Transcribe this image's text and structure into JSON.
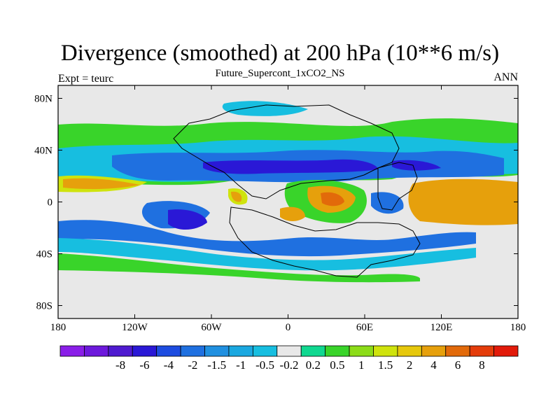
{
  "title": "Divergence (smoothed) at 200 hPa (10**6 m/s)",
  "subtitle": "Future_Supercont_1xCO2_NS",
  "left_label": "Expt = teurc",
  "right_label": "ANN",
  "chart_data": {
    "type": "heatmap",
    "projection": "cylindrical-equidistant",
    "xlim": [
      -180,
      180
    ],
    "ylim": [
      -90,
      90
    ],
    "x_ticks": [
      {
        "value": -180,
        "label": "180"
      },
      {
        "value": -120,
        "label": "120W"
      },
      {
        "value": -60,
        "label": "60W"
      },
      {
        "value": 0,
        "label": "0"
      },
      {
        "value": 60,
        "label": "60E"
      },
      {
        "value": 120,
        "label": "120E"
      },
      {
        "value": 180,
        "label": "180"
      }
    ],
    "y_ticks": [
      {
        "value": 80,
        "label": "80N"
      },
      {
        "value": 40,
        "label": "40N"
      },
      {
        "value": 0,
        "label": "0"
      },
      {
        "value": -40,
        "label": "40S"
      },
      {
        "value": -80,
        "label": "80S"
      }
    ],
    "colorbar": {
      "levels": [
        "-8",
        "-6",
        "-4",
        "-2",
        "-1.5",
        "-1",
        "-0.5",
        "-0.2",
        "0.2",
        "0.5",
        "1",
        "1.5",
        "2",
        "4",
        "6",
        "8"
      ],
      "colors": [
        "#8a1ee8",
        "#6d19dc",
        "#4f1ad0",
        "#2a18d6",
        "#1d4ce0",
        "#1f70e0",
        "#2090e0",
        "#1aa8e0",
        "#17bee0",
        "#e8e8e8",
        "#10d890",
        "#39d42a",
        "#8cdc18",
        "#cfe30d",
        "#e6c80c",
        "#e6a00c",
        "#e26a0a",
        "#e43c0a",
        "#e21a0a"
      ]
    },
    "background_color": "#e8e8e8",
    "coastline_color": "#000000"
  }
}
